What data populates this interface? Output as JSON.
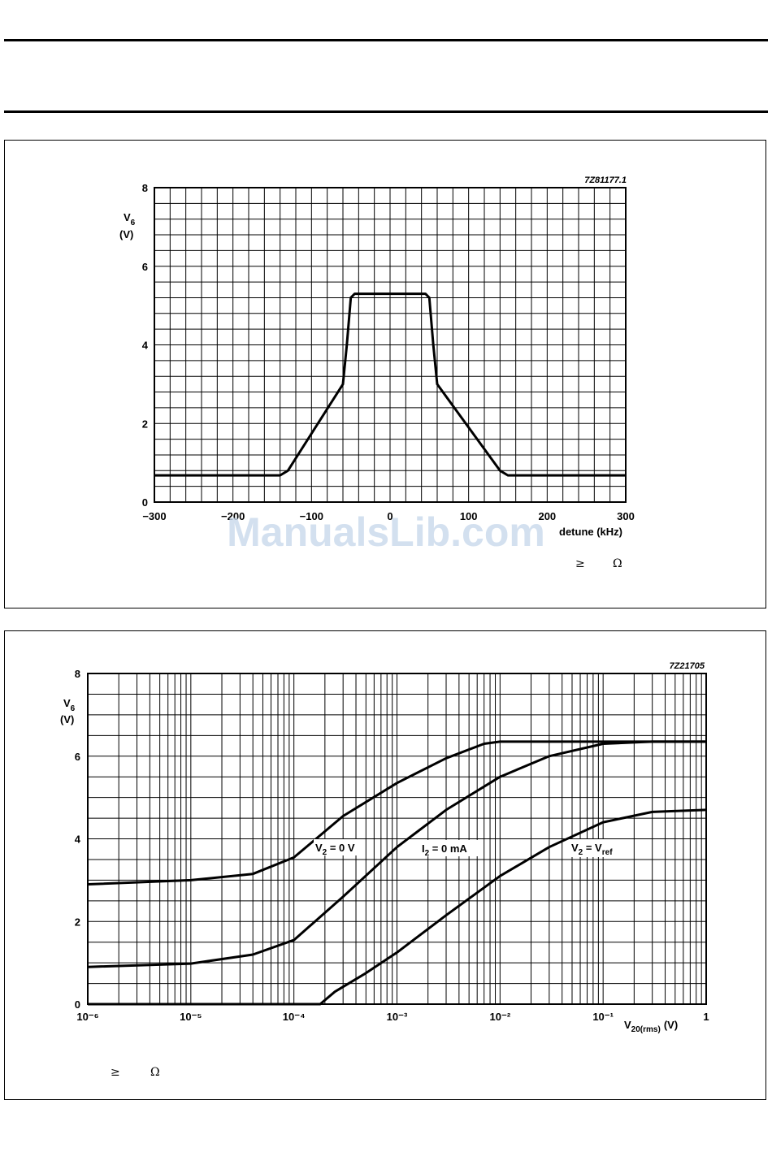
{
  "page": {
    "watermark": "ManualsLib.com"
  },
  "charts": [
    {
      "code": "7Z81177.1",
      "ylabel": {
        "main": "V",
        "sub": "6",
        "unit": "(V)"
      },
      "xlabel": "detune (kHz)",
      "footnote": {
        "ge": "≥",
        "ohm": "Ω"
      }
    },
    {
      "code": "7Z21705",
      "ylabel": {
        "main": "V",
        "sub": "6",
        "unit": "(V)"
      },
      "xlabel": {
        "main": "V",
        "sub": "20(rms)",
        "unit": "(V)"
      },
      "annotations": [
        {
          "main": "V",
          "sub": "2",
          "rest": " = 0 V"
        },
        {
          "main": "I",
          "sub": "2",
          "rest": " = 0 mA"
        },
        {
          "main": "V",
          "sub": "2",
          "rest": " = V",
          "sub2": "ref"
        }
      ],
      "footnote": {
        "ge": "≥",
        "ohm": "Ω"
      }
    }
  ],
  "chart_data": [
    {
      "type": "line",
      "xlim": [
        -300,
        300
      ],
      "ylim": [
        0,
        8
      ],
      "x_ticks": [
        "−300",
        "−200",
        "−100",
        "0",
        "100",
        "200",
        "300"
      ],
      "y_ticks": [
        "0",
        "2",
        "4",
        "6",
        "8"
      ],
      "grid": true,
      "series": [
        {
          "points": [
            [
              -300,
              0.68
            ],
            [
              -140,
              0.68
            ],
            [
              -130,
              0.8
            ],
            [
              -60,
              3.0
            ],
            [
              -55,
              4.0
            ],
            [
              -50,
              5.2
            ],
            [
              -45,
              5.3
            ],
            [
              45,
              5.3
            ],
            [
              50,
              5.2
            ],
            [
              55,
              4.0
            ],
            [
              60,
              3.0
            ],
            [
              140,
              0.8
            ],
            [
              150,
              0.68
            ],
            [
              300,
              0.68
            ]
          ]
        }
      ]
    },
    {
      "type": "line",
      "x_scale": "log",
      "xlim": [
        1e-06,
        1
      ],
      "ylim": [
        0,
        8
      ],
      "x_ticks": [
        "10⁻⁶",
        "10⁻⁵",
        "10⁻⁴",
        "10⁻³",
        "10⁻²",
        "10⁻¹",
        "1"
      ],
      "y_ticks": [
        "0",
        "2",
        "4",
        "6",
        "8"
      ],
      "grid": true,
      "series": [
        {
          "label": "V2 = 0 V",
          "points": [
            [
              1e-06,
              2.9
            ],
            [
              1e-05,
              3.0
            ],
            [
              4e-05,
              3.15
            ],
            [
              0.0001,
              3.55
            ],
            [
              0.0003,
              4.55
            ],
            [
              0.001,
              5.35
            ],
            [
              0.003,
              5.95
            ],
            [
              0.007,
              6.3
            ],
            [
              0.01,
              6.35
            ],
            [
              1,
              6.35
            ]
          ]
        },
        {
          "label": "I2 = 0 mA",
          "points": [
            [
              1e-06,
              0.9
            ],
            [
              1e-05,
              0.98
            ],
            [
              4e-05,
              1.2
            ],
            [
              0.0001,
              1.55
            ],
            [
              0.0003,
              2.6
            ],
            [
              0.001,
              3.8
            ],
            [
              0.003,
              4.7
            ],
            [
              0.01,
              5.5
            ],
            [
              0.03,
              6.0
            ],
            [
              0.1,
              6.3
            ],
            [
              0.3,
              6.35
            ],
            [
              1,
              6.35
            ]
          ]
        },
        {
          "label": "V2 = Vref",
          "points": [
            [
              1e-06,
              0
            ],
            [
              0.00018,
              0
            ],
            [
              0.00025,
              0.3
            ],
            [
              0.0005,
              0.75
            ],
            [
              0.001,
              1.25
            ],
            [
              0.003,
              2.15
            ],
            [
              0.01,
              3.1
            ],
            [
              0.03,
              3.8
            ],
            [
              0.1,
              4.4
            ],
            [
              0.3,
              4.65
            ],
            [
              1,
              4.7
            ]
          ]
        }
      ]
    }
  ]
}
